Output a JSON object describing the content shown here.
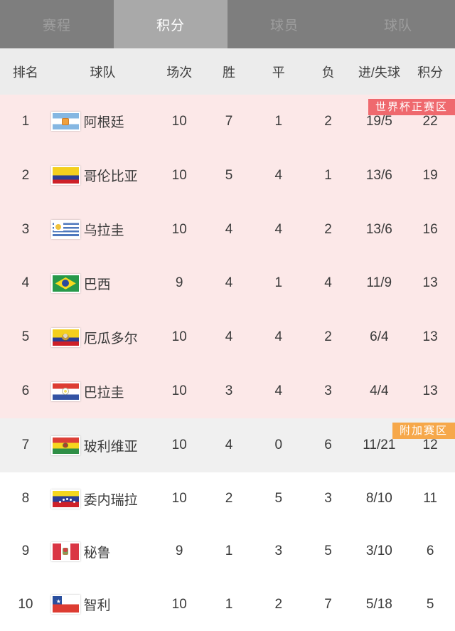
{
  "tab_bar": {
    "tabs": [
      {
        "label": "赛程",
        "active": false
      },
      {
        "label": "积分",
        "active": true
      },
      {
        "label": "球员",
        "active": false
      },
      {
        "label": "球队",
        "active": false
      }
    ]
  },
  "colors": {
    "tab_bar_bg": "#7e7e7e",
    "active_tab_bg": "#a9a9a9",
    "header_bg": "#ececec",
    "world_cup_zone_bg": "#fce8e8",
    "playoff_zone_bg": "#f0f0f0",
    "default_zone_bg": "#ffffff",
    "world_cup_badge": "#ef696e",
    "playoff_badge": "#f6a84a"
  },
  "table": {
    "headers": [
      "排名",
      "球队",
      "场次",
      "胜",
      "平",
      "负",
      "进/失球",
      "积分"
    ],
    "zones": [
      {
        "name": "zone-world-cup",
        "badge": "世界杯正赛区",
        "badge_name": "world-cup-zone-badge",
        "badge_color": "#ef696e",
        "bg": "#fce8e8",
        "rows": [
          {
            "rank": "1",
            "team": "阿根廷",
            "flag": "argentina",
            "played": "10",
            "win": "7",
            "draw": "1",
            "loss": "2",
            "goals": "19/5",
            "points": "22"
          },
          {
            "rank": "2",
            "team": "哥伦比亚",
            "flag": "colombia",
            "played": "10",
            "win": "5",
            "draw": "4",
            "loss": "1",
            "goals": "13/6",
            "points": "19"
          },
          {
            "rank": "3",
            "team": "乌拉圭",
            "flag": "uruguay",
            "played": "10",
            "win": "4",
            "draw": "4",
            "loss": "2",
            "goals": "13/6",
            "points": "16"
          },
          {
            "rank": "4",
            "team": "巴西",
            "flag": "brazil",
            "played": "9",
            "win": "4",
            "draw": "1",
            "loss": "4",
            "goals": "11/9",
            "points": "13"
          },
          {
            "rank": "5",
            "team": "厄瓜多尔",
            "flag": "ecuador",
            "played": "10",
            "win": "4",
            "draw": "4",
            "loss": "2",
            "goals": "6/4",
            "points": "13"
          },
          {
            "rank": "6",
            "team": "巴拉圭",
            "flag": "paraguay",
            "played": "10",
            "win": "3",
            "draw": "4",
            "loss": "3",
            "goals": "4/4",
            "points": "13"
          }
        ]
      },
      {
        "name": "zone-playoff",
        "badge": "附加赛区",
        "badge_name": "playoff-zone-badge",
        "badge_color": "#f6a84a",
        "bg": "#f0f0f0",
        "rows": [
          {
            "rank": "7",
            "team": "玻利维亚",
            "flag": "bolivia",
            "played": "10",
            "win": "4",
            "draw": "0",
            "loss": "6",
            "goals": "11/21",
            "points": "12"
          }
        ]
      },
      {
        "name": "zone-default",
        "badge": null,
        "badge_name": null,
        "badge_color": null,
        "bg": "#ffffff",
        "rows": [
          {
            "rank": "8",
            "team": "委内瑞拉",
            "flag": "venezuela",
            "played": "10",
            "win": "2",
            "draw": "5",
            "loss": "3",
            "goals": "8/10",
            "points": "11"
          },
          {
            "rank": "9",
            "team": "秘鲁",
            "flag": "peru",
            "played": "9",
            "win": "1",
            "draw": "3",
            "loss": "5",
            "goals": "3/10",
            "points": "6"
          },
          {
            "rank": "10",
            "team": "智利",
            "flag": "chile",
            "played": "10",
            "win": "1",
            "draw": "2",
            "loss": "7",
            "goals": "5/18",
            "points": "5"
          }
        ]
      }
    ]
  }
}
